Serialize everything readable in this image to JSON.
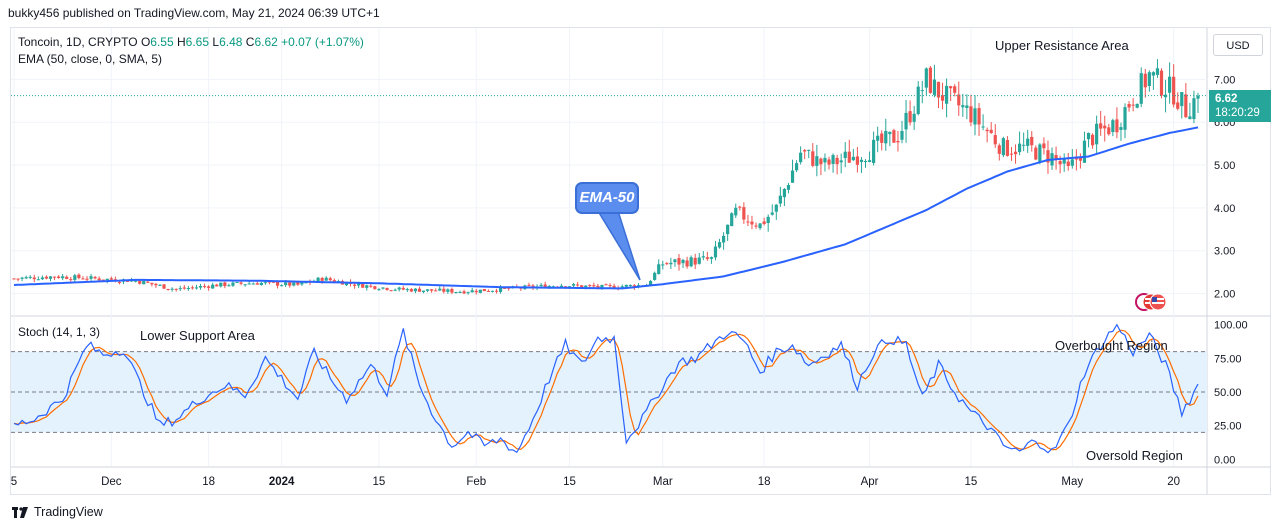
{
  "header": {
    "attribution": "bukky456 published on TradingView.com, May 21, 2024 06:39 UTC+1"
  },
  "legend": {
    "symbol": "Toncoin, 1D, CRYPTO",
    "open_label": "O",
    "open": "6.55",
    "high_label": "H",
    "high": "6.65",
    "low_label": "L",
    "low": "6.48",
    "close_label": "C",
    "close": "6.62",
    "change": "+0.07 (+1.07%)",
    "ema": "EMA (50, close, 0, SMA, 5)",
    "stoch": "Stoch (14, 1, 3)"
  },
  "currency": "USD",
  "price_tag": {
    "price": "6.62",
    "countdown": "18:20:29"
  },
  "annotations": {
    "ema_callout": "EMA-50",
    "upper_resistance": "Upper Resistance Area",
    "lower_support": "Lower Support Area",
    "overbought": "Overbought Region",
    "oversold": "Oversold Region"
  },
  "footer": {
    "brand": "TradingView"
  },
  "colors": {
    "up": "#26a69a",
    "down": "#ef5350",
    "ema": "#2962ff",
    "k": "#2962ff",
    "d": "#ff6d00",
    "band": "#e3f2fd"
  },
  "chart_data": {
    "type": "candlestick",
    "title": "Toncoin, 1D, CRYPTO",
    "price_axis": {
      "range": [
        1.5,
        8.2
      ],
      "ticks": [
        "2.00",
        "3.00",
        "4.00",
        "5.00",
        "6.00",
        "7.00"
      ]
    },
    "stoch_axis": {
      "range": [
        -5,
        105
      ],
      "ticks": [
        "0.00",
        "25.00",
        "50.00",
        "75.00",
        "100.00"
      ],
      "bands": [
        20,
        80
      ]
    },
    "x_ticks": [
      "5",
      "Dec",
      "18",
      "2024",
      "15",
      "Feb",
      "15",
      "Mar",
      "18",
      "Apr",
      "15",
      "May",
      "20"
    ],
    "x_tick_index": [
      0,
      24,
      48,
      66,
      90,
      114,
      137,
      160,
      185,
      211,
      236,
      261,
      286
    ],
    "ema_waypoints": [
      [
        0,
        2.2
      ],
      [
        30,
        2.32
      ],
      [
        60,
        2.3
      ],
      [
        90,
        2.24
      ],
      [
        120,
        2.15
      ],
      [
        150,
        2.12
      ],
      [
        160,
        2.22
      ],
      [
        175,
        2.4
      ],
      [
        190,
        2.75
      ],
      [
        205,
        3.15
      ],
      [
        215,
        3.55
      ],
      [
        225,
        3.95
      ],
      [
        235,
        4.45
      ],
      [
        245,
        4.85
      ],
      [
        255,
        5.12
      ],
      [
        265,
        5.2
      ],
      [
        275,
        5.5
      ],
      [
        285,
        5.75
      ],
      [
        292,
        5.88
      ]
    ],
    "close_waypoints": [
      [
        0,
        2.35
      ],
      [
        10,
        2.4
      ],
      [
        20,
        2.35
      ],
      [
        30,
        2.3
      ],
      [
        40,
        2.1
      ],
      [
        50,
        2.2
      ],
      [
        60,
        2.25
      ],
      [
        70,
        2.2
      ],
      [
        76,
        2.35
      ],
      [
        85,
        2.2
      ],
      [
        95,
        2.1
      ],
      [
        110,
        2.05
      ],
      [
        120,
        2.1
      ],
      [
        135,
        2.2
      ],
      [
        145,
        2.15
      ],
      [
        156,
        2.2
      ],
      [
        160,
        2.7
      ],
      [
        172,
        2.8
      ],
      [
        178,
        3.9
      ],
      [
        184,
        3.6
      ],
      [
        188,
        4.0
      ],
      [
        194,
        5.3
      ],
      [
        200,
        5.0
      ],
      [
        210,
        5.3
      ],
      [
        218,
        5.7
      ],
      [
        222,
        6.4
      ],
      [
        225,
        7.0
      ],
      [
        228,
        6.7
      ],
      [
        236,
        6.2
      ],
      [
        244,
        5.4
      ],
      [
        250,
        5.4
      ],
      [
        256,
        5.2
      ],
      [
        260,
        4.85
      ],
      [
        265,
        5.6
      ],
      [
        272,
        6.0
      ],
      [
        276,
        6.6
      ],
      [
        280,
        7.1
      ],
      [
        286,
        6.7
      ],
      [
        289,
        6.3
      ],
      [
        292,
        6.62
      ]
    ],
    "stoch_k_waypoints": [
      [
        0,
        25
      ],
      [
        5,
        30
      ],
      [
        12,
        45
      ],
      [
        18,
        85
      ],
      [
        22,
        78
      ],
      [
        27,
        82
      ],
      [
        32,
        50
      ],
      [
        36,
        25
      ],
      [
        40,
        30
      ],
      [
        46,
        45
      ],
      [
        52,
        55
      ],
      [
        57,
        48
      ],
      [
        62,
        75
      ],
      [
        66,
        60
      ],
      [
        70,
        45
      ],
      [
        74,
        80
      ],
      [
        78,
        60
      ],
      [
        82,
        45
      ],
      [
        88,
        70
      ],
      [
        92,
        50
      ],
      [
        96,
        95
      ],
      [
        100,
        55
      ],
      [
        104,
        30
      ],
      [
        108,
        10
      ],
      [
        112,
        20
      ],
      [
        116,
        10
      ],
      [
        120,
        15
      ],
      [
        124,
        5
      ],
      [
        128,
        30
      ],
      [
        132,
        60
      ],
      [
        136,
        85
      ],
      [
        140,
        70
      ],
      [
        144,
        90
      ],
      [
        148,
        90
      ],
      [
        151,
        15
      ],
      [
        155,
        30
      ],
      [
        160,
        55
      ],
      [
        164,
        72
      ],
      [
        168,
        75
      ],
      [
        172,
        85
      ],
      [
        176,
        95
      ],
      [
        180,
        88
      ],
      [
        184,
        65
      ],
      [
        188,
        80
      ],
      [
        192,
        85
      ],
      [
        196,
        70
      ],
      [
        200,
        78
      ],
      [
        204,
        85
      ],
      [
        208,
        55
      ],
      [
        212,
        80
      ],
      [
        216,
        90
      ],
      [
        220,
        85
      ],
      [
        224,
        45
      ],
      [
        228,
        70
      ],
      [
        232,
        50
      ],
      [
        236,
        35
      ],
      [
        240,
        25
      ],
      [
        244,
        10
      ],
      [
        248,
        5
      ],
      [
        252,
        15
      ],
      [
        256,
        5
      ],
      [
        260,
        25
      ],
      [
        264,
        65
      ],
      [
        268,
        85
      ],
      [
        272,
        100
      ],
      [
        276,
        80
      ],
      [
        280,
        92
      ],
      [
        284,
        70
      ],
      [
        288,
        35
      ],
      [
        292,
        55
      ]
    ]
  }
}
